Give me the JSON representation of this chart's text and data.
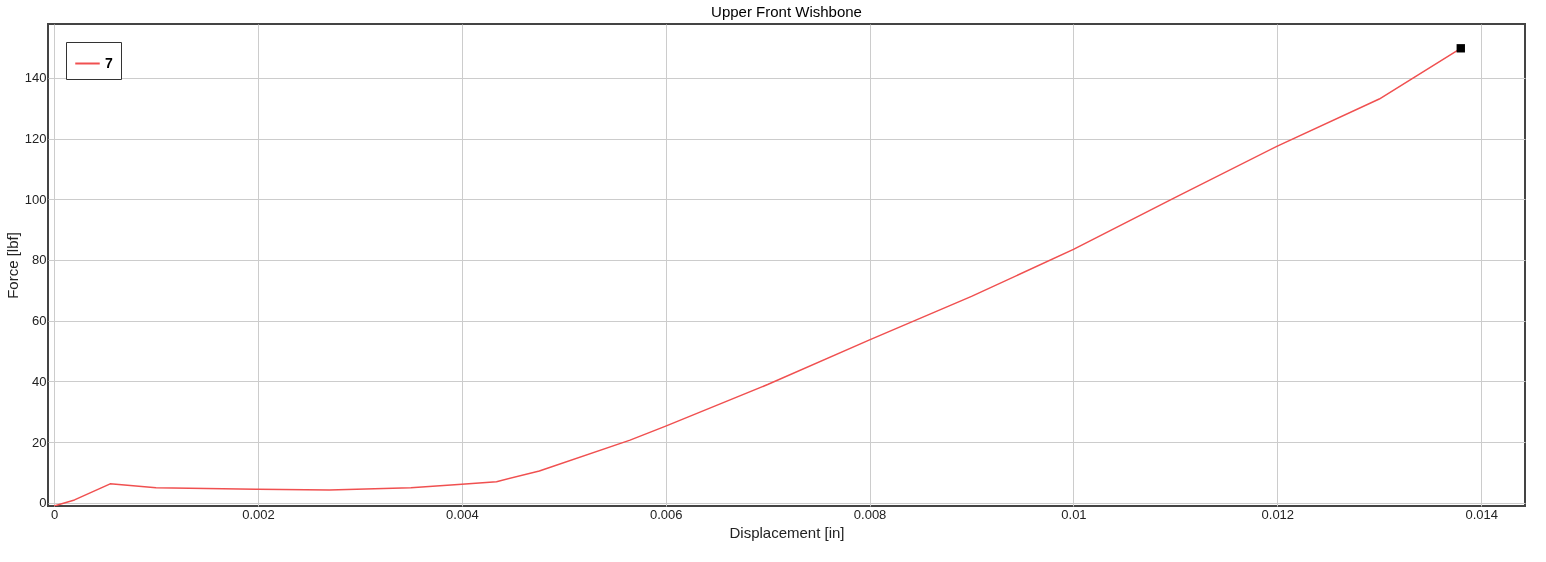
{
  "chart_data": {
    "type": "line",
    "title": "Upper Front Wishbone",
    "xlabel": "Displacement [in]",
    "ylabel": "Force [lbf]",
    "xlim": [
      -6e-05,
      0.01443
    ],
    "ylim": [
      -1,
      157.7
    ],
    "xticks": [
      0,
      0.002,
      0.004,
      0.006,
      0.008,
      0.01,
      0.012,
      0.014
    ],
    "yticks": [
      0,
      20,
      40,
      60,
      80,
      100,
      120,
      140
    ],
    "grid": true,
    "legend": "top left",
    "line_style": "solid",
    "marker": "none",
    "series": [
      {
        "name": "7",
        "color": "#f05050",
        "x": [
          0,
          0.0002,
          0.00055,
          0.001,
          0.002,
          0.0027,
          0.0035,
          0.004,
          0.00434,
          0.00476,
          0.00565,
          0.006,
          0.007,
          0.008,
          0.009,
          0.01,
          0.011,
          0.012,
          0.013,
          0.0138
        ],
        "values": [
          -1,
          1,
          6.3,
          5,
          4.5,
          4.3,
          5,
          6.2,
          7,
          10.5,
          20.7,
          25.3,
          39,
          53.7,
          68,
          83.5,
          100.6,
          117.5,
          133,
          149.7
        ]
      },
      {
        "color": "#000000",
        "type": "scatter",
        "marker": "square",
        "x": [
          0.0138
        ],
        "values": [
          149.7
        ]
      }
    ]
  }
}
